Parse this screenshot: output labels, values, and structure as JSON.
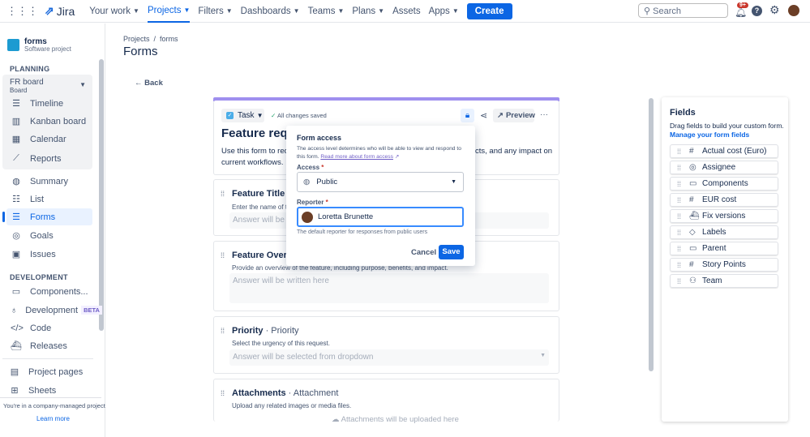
{
  "topnav": {
    "logo": "Jira",
    "items": [
      "Your work",
      "Projects",
      "Filters",
      "Dashboards",
      "Teams",
      "Plans",
      "Assets",
      "Apps"
    ],
    "create": "Create",
    "search_placeholder": "Search",
    "notif_badge": "9+"
  },
  "sidebar": {
    "project_name": "forms",
    "project_type": "Software project",
    "planning": "PLANNING",
    "board": "FR board",
    "board_sub": "Board",
    "board_items": [
      "Timeline",
      "Kanban board",
      "Calendar",
      "Reports"
    ],
    "items": [
      "Summary",
      "List",
      "Forms",
      "Goals",
      "Issues"
    ],
    "development": "DEVELOPMENT",
    "dev_items": [
      "Components...",
      "Development",
      "Code",
      "Releases"
    ],
    "beta": "BETA",
    "bottom_items": [
      "Project pages",
      "Sheets"
    ],
    "footer": "You're in a company-managed project",
    "learn_more": "Learn more"
  },
  "main": {
    "breadcrumb": [
      "Projects",
      "forms"
    ],
    "title": "Forms",
    "back": "Back"
  },
  "form": {
    "type": "Task",
    "saved": "All changes saved",
    "preview": "Preview",
    "title": "Feature reque",
    "desc1": "Use this form to reque",
    "desc1b": "cts, and any impact on",
    "desc2": "current workflows.",
    "fields": [
      {
        "title": "Feature Title",
        "type": "Sum",
        "hint": "Enter the name of the f",
        "answer": "Answer will be wri"
      },
      {
        "title": "Feature Overview",
        "type": "",
        "hint": "Provide an overview of the feature, including purpose, benefits, and impact.",
        "answer": "Answer will be written here"
      },
      {
        "title": "Priority",
        "type": "Priority",
        "hint": "Select the urgency of this request.",
        "answer": "Answer will be selected from dropdown"
      },
      {
        "title": "Attachments",
        "type": "Attachment",
        "hint": "Upload any related images or media files.",
        "answer": "Attachments will be uploaded here"
      }
    ]
  },
  "popup": {
    "title": "Form access",
    "desc": "The access level determines who will be able to view and respond to this form.",
    "link": "Read more about form access",
    "access_label": "Access",
    "access_value": "Public",
    "reporter_label": "Reporter",
    "reporter_value": "Loretta Brunette",
    "reporter_hint": "The default reporter for responses from public users",
    "cancel": "Cancel",
    "save": "Save",
    "required": "*"
  },
  "fields_panel": {
    "title": "Fields",
    "desc": "Drag fields to build your custom form.",
    "manage": "Manage your form fields",
    "items": [
      {
        "label": "Actual cost (Euro)",
        "icon": "#"
      },
      {
        "label": "Assignee",
        "icon": "◎"
      },
      {
        "label": "Components",
        "icon": "▭"
      },
      {
        "label": "EUR cost",
        "icon": "#"
      },
      {
        "label": "Fix versions",
        "icon": "⛴"
      },
      {
        "label": "Labels",
        "icon": "◇"
      },
      {
        "label": "Parent",
        "icon": "▭"
      },
      {
        "label": "Story Points",
        "icon": "#"
      },
      {
        "label": "Team",
        "icon": "⚇"
      }
    ]
  }
}
